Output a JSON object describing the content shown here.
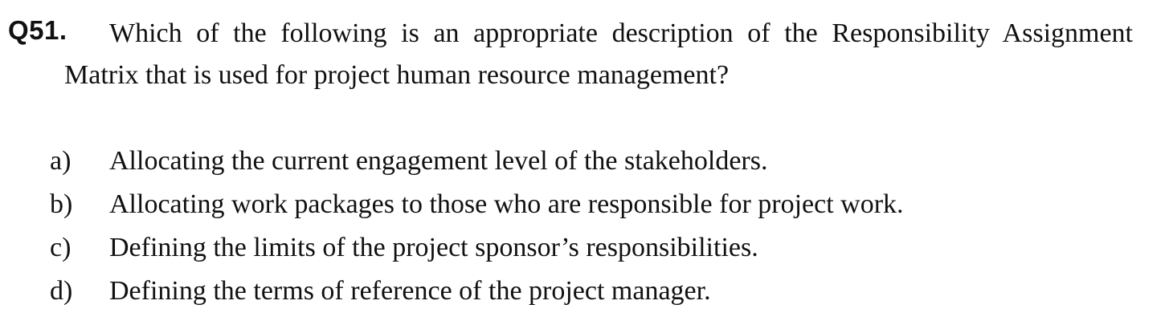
{
  "question": {
    "number": "Q51.",
    "text": "Which of the following is an appropriate description of the Responsibility Assignment Matrix that is used for project human resource management?"
  },
  "options": [
    {
      "letter": "a)",
      "text": "Allocating the current engagement level of the stakeholders."
    },
    {
      "letter": "b)",
      "text": "Allocating work packages to those who are responsible for project work."
    },
    {
      "letter": "c)",
      "text": "Defining the limits of the project sponsor’s responsibilities."
    },
    {
      "letter": "d)",
      "text": "Defining the terms of reference of the project manager."
    }
  ]
}
